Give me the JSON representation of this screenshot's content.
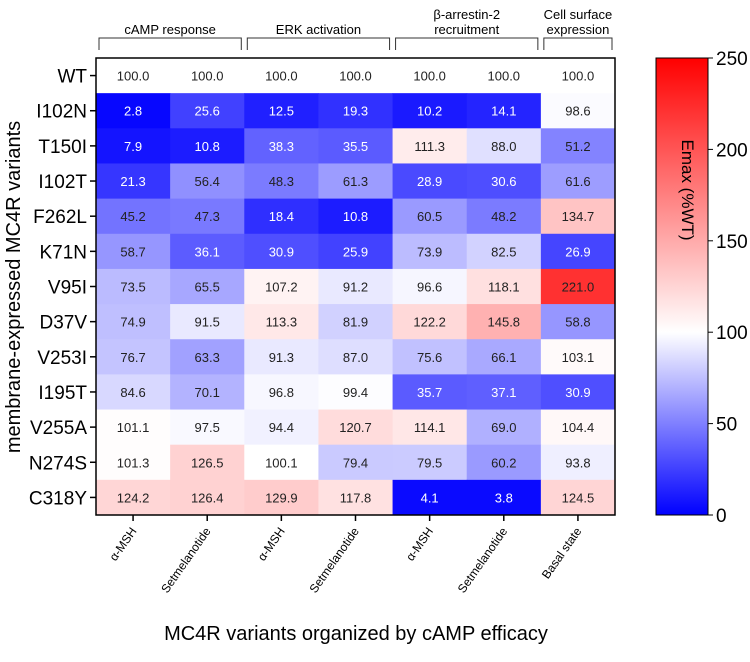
{
  "chart_data": {
    "type": "heatmap",
    "title": "",
    "xlabel": "MC4R variants organized by cAMP efficacy",
    "ylabel": "membrane-expressed MC4R variants",
    "groups": [
      {
        "label": [
          "cAMP response"
        ],
        "columns": [
          0,
          1
        ]
      },
      {
        "label": [
          "ERK activation"
        ],
        "columns": [
          2,
          3
        ]
      },
      {
        "label": [
          "β-arrestin-2",
          "recruitment"
        ],
        "columns": [
          4,
          5
        ]
      },
      {
        "label": [
          "Cell surface",
          "expression"
        ],
        "columns": [
          6
        ]
      }
    ],
    "columns": [
      "α-MSH",
      "Setmelanotide",
      "α-MSH",
      "Setmelanotide",
      "α-MSH",
      "Setmelanotide",
      "Basal state"
    ],
    "rows": [
      "WT",
      "I102N",
      "T150I",
      "I102T",
      "F262L",
      "K71N",
      "V95I",
      "D37V",
      "V253I",
      "I195T",
      "V255A",
      "N274S",
      "C318Y"
    ],
    "values": [
      [
        100.0,
        100.0,
        100.0,
        100.0,
        100.0,
        100.0,
        100.0
      ],
      [
        2.8,
        25.6,
        12.5,
        19.3,
        10.2,
        14.1,
        98.6
      ],
      [
        7.9,
        10.8,
        38.3,
        35.5,
        111.3,
        88.0,
        51.2
      ],
      [
        21.3,
        56.4,
        48.3,
        61.3,
        28.9,
        30.6,
        61.6
      ],
      [
        45.2,
        47.3,
        18.4,
        10.8,
        60.5,
        48.2,
        134.7
      ],
      [
        58.7,
        36.1,
        30.9,
        25.9,
        73.9,
        82.5,
        26.9
      ],
      [
        73.5,
        65.5,
        107.2,
        91.2,
        96.6,
        118.1,
        221.0
      ],
      [
        74.9,
        91.5,
        113.3,
        81.9,
        122.2,
        145.8,
        58.8
      ],
      [
        76.7,
        63.3,
        91.3,
        87.0,
        75.6,
        66.1,
        103.1
      ],
      [
        84.6,
        70.1,
        96.8,
        99.4,
        35.7,
        37.1,
        30.9
      ],
      [
        101.1,
        97.5,
        94.4,
        120.7,
        114.1,
        69.0,
        104.4
      ],
      [
        101.3,
        126.5,
        100.1,
        79.4,
        79.5,
        60.2,
        93.8
      ],
      [
        124.2,
        126.4,
        129.9,
        117.8,
        4.1,
        3.8,
        124.5
      ]
    ],
    "colorbar": {
      "label": "Emax (%WT)",
      "range": [
        0,
        250
      ],
      "center": 100,
      "ticks": [
        0,
        50,
        100,
        150,
        200,
        250
      ],
      "colors": {
        "low": "#0000ff",
        "mid": "#ffffff",
        "high": "#ff0000"
      }
    }
  }
}
